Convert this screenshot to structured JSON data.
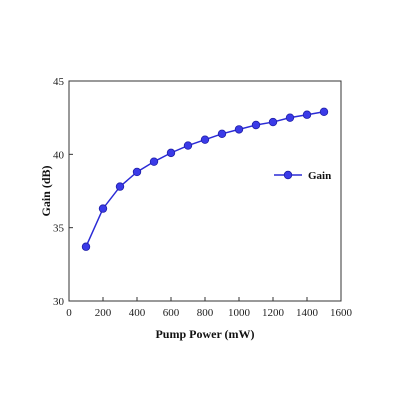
{
  "chart_data": {
    "type": "line",
    "xlabel": "Pump Power (mW)",
    "ylabel": "Gain (dB)",
    "xlim": [
      0,
      1600
    ],
    "ylim": [
      30,
      45
    ],
    "xticks": [
      0,
      200,
      400,
      600,
      800,
      1000,
      1200,
      1400,
      1600
    ],
    "yticks": [
      30,
      35,
      40,
      45
    ],
    "grid": false,
    "legend_position": "right",
    "series": [
      {
        "name": "Gain",
        "color": "#2b2bd6",
        "marker": "circle",
        "x": [
          100,
          200,
          300,
          400,
          500,
          600,
          700,
          800,
          900,
          1000,
          1100,
          1200,
          1300,
          1400,
          1500
        ],
        "y": [
          33.7,
          36.3,
          37.8,
          38.8,
          39.5,
          40.1,
          40.6,
          41.0,
          41.4,
          41.7,
          42.0,
          42.2,
          42.5,
          42.7,
          42.9
        ]
      }
    ]
  }
}
